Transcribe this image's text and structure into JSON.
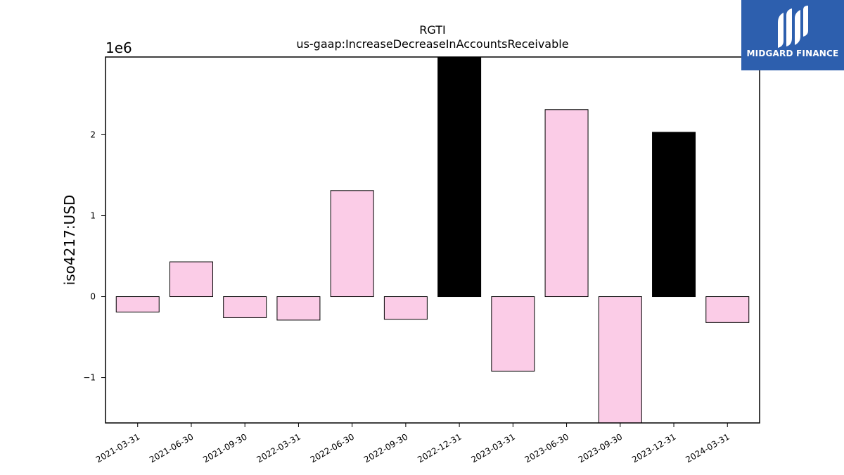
{
  "chart_data": {
    "type": "bar",
    "title": "RGTI",
    "subtitle": "us-gaap:IncreaseDecreaseInAccountsReceivable",
    "xlabel": "",
    "ylabel": "iso4217:USD",
    "y_offset_label": "1e6",
    "ylim": [
      -1.56,
      2.96
    ],
    "yticks": [
      -1,
      0,
      1,
      2
    ],
    "ytick_labels": [
      "−1",
      "0",
      "1",
      "2"
    ],
    "categories": [
      "2021-03-31",
      "2021-06-30",
      "2021-09-30",
      "2022-03-31",
      "2022-06-30",
      "2022-09-30",
      "2022-12-31",
      "2023-03-31",
      "2023-06-30",
      "2023-09-30",
      "2023-12-31",
      "2024-03-31"
    ],
    "values": [
      -0.19,
      0.43,
      -0.26,
      -0.29,
      1.31,
      -0.28,
      3.0,
      -0.92,
      2.31,
      -1.6,
      2.03,
      -0.32
    ],
    "bar_colors": [
      "#fbcce7",
      "#fbcce7",
      "#fbcce7",
      "#fbcce7",
      "#fbcce7",
      "#fbcce7",
      "#000000",
      "#fbcce7",
      "#fbcce7",
      "#fbcce7",
      "#000000",
      "#fbcce7"
    ],
    "grid": false
  },
  "logo": {
    "text": "MIDGARD FINANCE",
    "background": "#2d5fae"
  }
}
